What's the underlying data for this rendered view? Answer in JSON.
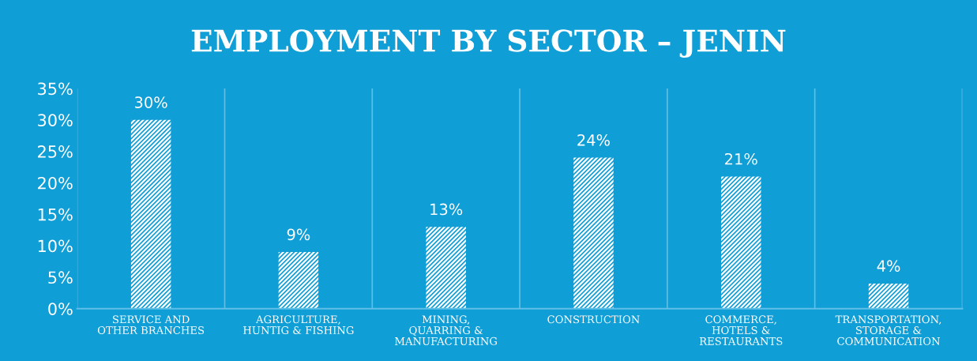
{
  "chart_data": {
    "type": "bar",
    "title": "EMPLOYMENT BY SECTOR – JENIN",
    "categories": [
      "SERVICE AND\nOTHER BRANCHES",
      "AGRICULTURE,\nHUNTIG & FISHING",
      "MINING,\nQUARRING &\nMANUFACTURING",
      "CONSTRUCTION",
      "COMMERCE,\nHOTELS &\nRESTAURANTS",
      "TRANSPORTATION,\nSTORAGE &\nCOMMUNICATION"
    ],
    "values": [
      30,
      9,
      13,
      24,
      21,
      4
    ],
    "value_labels": [
      "30%",
      "9%",
      "13%",
      "24%",
      "21%",
      "4%"
    ],
    "color": "#ffffff",
    "ylim": [
      0,
      35
    ],
    "yticks": [
      {
        "value": 0,
        "label": "0%"
      },
      {
        "value": 5,
        "label": "5%"
      },
      {
        "value": 10,
        "label": "10%"
      },
      {
        "value": 15,
        "label": "15%"
      },
      {
        "value": 20,
        "label": "20%"
      },
      {
        "value": 25,
        "label": "25%"
      },
      {
        "value": 30,
        "label": "30%"
      },
      {
        "value": 35,
        "label": "35%"
      }
    ],
    "grid": "x",
    "legend": false
  }
}
